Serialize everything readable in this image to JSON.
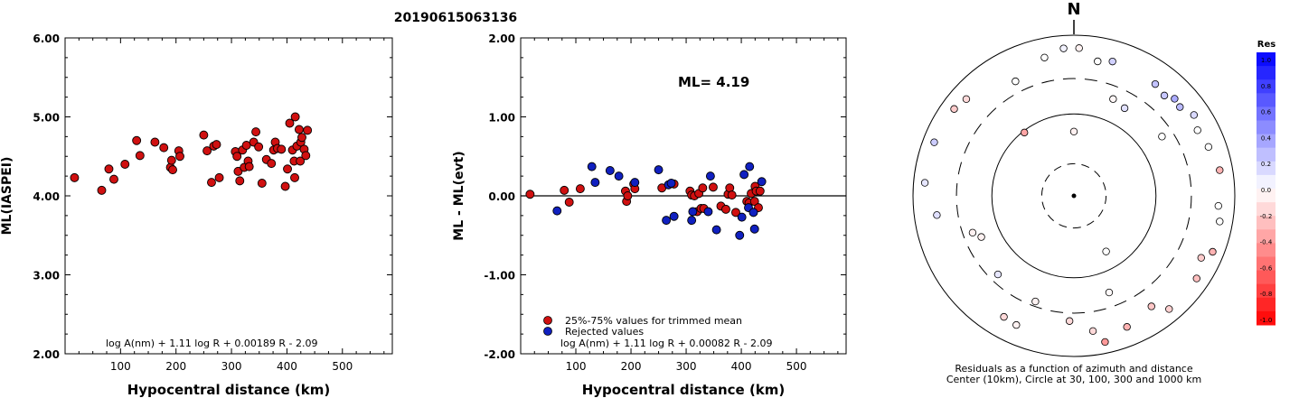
{
  "figure": {
    "event_id": "20190615063136"
  },
  "chart_data": [
    {
      "type": "scatter",
      "xlabel": "Hypocentral distance (km)",
      "ylabel": "ML(IASPEI)",
      "xlim": [
        0,
        590
      ],
      "ylim": [
        2.0,
        6.0
      ],
      "xticks": [
        100,
        200,
        300,
        400,
        500
      ],
      "xtick_labels": [
        "100",
        "200",
        "300",
        "400",
        "500"
      ],
      "yticks": [
        2,
        3,
        4,
        5,
        6
      ],
      "ytick_labels": [
        "2.00",
        "3.00",
        "4.00",
        "5.00",
        "6.00"
      ],
      "grid": false,
      "formula": "log A(nm) + 1.11 log R + 0.00189 R - 2.09",
      "points_color": "#d01010",
      "points": [
        [
          17,
          4.23
        ],
        [
          66,
          4.07
        ],
        [
          79,
          4.34
        ],
        [
          88,
          4.21
        ],
        [
          108,
          4.4
        ],
        [
          129,
          4.7
        ],
        [
          135,
          4.51
        ],
        [
          162,
          4.68
        ],
        [
          178,
          4.61
        ],
        [
          190,
          4.36
        ],
        [
          192,
          4.45
        ],
        [
          194,
          4.33
        ],
        [
          205,
          4.57
        ],
        [
          207,
          4.5
        ],
        [
          250,
          4.77
        ],
        [
          256,
          4.57
        ],
        [
          264,
          4.17
        ],
        [
          268,
          4.63
        ],
        [
          273,
          4.65
        ],
        [
          278,
          4.23
        ],
        [
          307,
          4.56
        ],
        [
          310,
          4.5
        ],
        [
          312,
          4.31
        ],
        [
          315,
          4.19
        ],
        [
          320,
          4.58
        ],
        [
          323,
          4.36
        ],
        [
          327,
          4.64
        ],
        [
          330,
          4.44
        ],
        [
          332,
          4.37
        ],
        [
          340,
          4.68
        ],
        [
          344,
          4.81
        ],
        [
          349,
          4.62
        ],
        [
          355,
          4.16
        ],
        [
          363,
          4.46
        ],
        [
          372,
          4.41
        ],
        [
          376,
          4.58
        ],
        [
          379,
          4.68
        ],
        [
          383,
          4.6
        ],
        [
          390,
          4.59
        ],
        [
          397,
          4.12
        ],
        [
          401,
          4.34
        ],
        [
          405,
          4.92
        ],
        [
          410,
          4.58
        ],
        [
          413,
          4.44
        ],
        [
          414,
          4.23
        ],
        [
          415,
          5.0
        ],
        [
          418,
          4.63
        ],
        [
          422,
          4.84
        ],
        [
          424,
          4.44
        ],
        [
          425,
          4.68
        ],
        [
          427,
          4.74
        ],
        [
          431,
          4.59
        ],
        [
          434,
          4.51
        ],
        [
          437,
          4.83
        ]
      ]
    },
    {
      "type": "scatter",
      "xlabel": "Hypocentral distance (km)",
      "ylabel": "ML - ML(evt)",
      "xlim": [
        0,
        590
      ],
      "ylim": [
        -2.0,
        2.0
      ],
      "xticks": [
        100,
        200,
        300,
        400,
        500
      ],
      "xtick_labels": [
        "100",
        "200",
        "300",
        "400",
        "500"
      ],
      "yticks": [
        -2,
        -1,
        0,
        1,
        2
      ],
      "ytick_labels": [
        "-2.00",
        "-1.00",
        "0.00",
        "1.00",
        "2.00"
      ],
      "zero_line": 0,
      "annotation": "ML= 4.19",
      "formula": "log A(nm) + 1.11 log R + 0.00082 R - 2.09",
      "legend": [
        {
          "label": "25%-75% values for trimmed mean",
          "color": "#d01010"
        },
        {
          "label": "Rejected values",
          "color": "#1020c0"
        }
      ],
      "series": [
        {
          "name": "25%-75% values for trimmed mean",
          "color": "#d01010",
          "points": [
            [
              17,
              0.02
            ],
            [
              79,
              0.07
            ],
            [
              88,
              -0.08
            ],
            [
              108,
              0.09
            ],
            [
              190,
              0.06
            ],
            [
              192,
              -0.07
            ],
            [
              194,
              0.0
            ],
            [
              205,
              0.15
            ],
            [
              207,
              0.09
            ],
            [
              256,
              0.1
            ],
            [
              278,
              0.15
            ],
            [
              307,
              0.06
            ],
            [
              310,
              0.01
            ],
            [
              315,
              0.0
            ],
            [
              320,
              -0.2
            ],
            [
              323,
              0.03
            ],
            [
              327,
              -0.16
            ],
            [
              330,
              0.1
            ],
            [
              332,
              -0.16
            ],
            [
              349,
              0.11
            ],
            [
              363,
              -0.13
            ],
            [
              372,
              -0.17
            ],
            [
              376,
              0.02
            ],
            [
              379,
              0.1
            ],
            [
              383,
              0.01
            ],
            [
              390,
              -0.21
            ],
            [
              410,
              -0.07
            ],
            [
              414,
              -0.09
            ],
            [
              418,
              0.03
            ],
            [
              424,
              -0.07
            ],
            [
              425,
              0.12
            ],
            [
              427,
              0.06
            ],
            [
              431,
              -0.15
            ],
            [
              434,
              0.06
            ]
          ]
        },
        {
          "name": "Rejected values",
          "color": "#1020c0",
          "points": [
            [
              66,
              -0.19
            ],
            [
              129,
              0.37
            ],
            [
              135,
              0.17
            ],
            [
              162,
              0.32
            ],
            [
              178,
              0.25
            ],
            [
              207,
              0.17
            ],
            [
              250,
              0.33
            ],
            [
              264,
              -0.31
            ],
            [
              268,
              0.14
            ],
            [
              273,
              0.16
            ],
            [
              278,
              -0.26
            ],
            [
              310,
              -0.31
            ],
            [
              312,
              -0.2
            ],
            [
              340,
              -0.2
            ],
            [
              344,
              0.25
            ],
            [
              355,
              -0.43
            ],
            [
              397,
              -0.5
            ],
            [
              401,
              -0.27
            ],
            [
              405,
              0.27
            ],
            [
              413,
              -0.15
            ],
            [
              415,
              0.37
            ],
            [
              422,
              -0.21
            ],
            [
              424,
              -0.42
            ],
            [
              437,
              0.18
            ]
          ]
        }
      ]
    }
  ],
  "polar": {
    "north_label": "N",
    "caption_line1": "Residuals as a function of azimuth and distance",
    "caption_line2": "Center (10km), Circle at 30, 100, 300 and 1000 km",
    "circles": [
      {
        "distance_km": 30,
        "style": "dashed"
      },
      {
        "distance_km": 100,
        "style": "solid"
      },
      {
        "distance_km": 300,
        "style": "dashed"
      },
      {
        "distance_km": 1000,
        "style": "solid"
      }
    ],
    "stations": [
      [
        0,
        0.4,
        -0.06
      ],
      [
        22,
        0.65,
        -0.03
      ],
      [
        30,
        0.63,
        0.12
      ],
      [
        36,
        0.86,
        0.24
      ],
      [
        42,
        0.84,
        0.22
      ],
      [
        46,
        0.87,
        0.33
      ],
      [
        50,
        0.86,
        0.27
      ],
      [
        56,
        0.9,
        0.15
      ],
      [
        62,
        0.87,
        0.0
      ],
      [
        70,
        0.89,
        0.0
      ],
      [
        80,
        0.92,
        -0.3
      ],
      [
        94,
        0.9,
        0.0
      ],
      [
        100,
        0.92,
        0.0
      ],
      [
        112,
        0.93,
        -0.3
      ],
      [
        116,
        0.88,
        -0.2
      ],
      [
        124,
        0.92,
        -0.25
      ],
      [
        140,
        0.92,
        -0.18
      ],
      [
        145,
        0.84,
        -0.22
      ],
      [
        158,
        0.88,
        -0.3
      ],
      [
        168,
        0.93,
        -0.4
      ],
      [
        182,
        0.78,
        -0.15
      ],
      [
        200,
        0.7,
        -0.05
      ],
      [
        204,
        0.88,
        -0.05
      ],
      [
        210,
        0.87,
        -0.15
      ],
      [
        224,
        0.68,
        0.1
      ],
      [
        246,
        0.63,
        -0.05
      ],
      [
        250,
        0.67,
        -0.05
      ],
      [
        262,
        0.86,
        0.12
      ],
      [
        275,
        0.93,
        0.1
      ],
      [
        291,
        0.93,
        0.2
      ],
      [
        306,
        0.92,
        -0.2
      ],
      [
        312,
        0.9,
        -0.15
      ],
      [
        322,
        0.5,
        -0.35
      ],
      [
        333,
        0.8,
        0.0
      ],
      [
        348,
        0.88,
        0.0
      ],
      [
        356,
        0.92,
        0.05
      ],
      [
        2,
        0.92,
        -0.05
      ],
      [
        10,
        0.85,
        0.0
      ],
      [
        16,
        0.87,
        0.18
      ],
      [
        172,
        0.85,
        -0.15
      ],
      [
        160,
        0.64,
        -0.02
      ],
      [
        150,
        0.4,
        0.0
      ],
      [
        56,
        0.66,
        0.0
      ]
    ],
    "colorbar": {
      "title": "Res",
      "ticks": [
        "1.0",
        "0.8",
        "0.6",
        "0.4",
        "0.2",
        "0.0",
        "-0.2",
        "-0.4",
        "-0.6",
        "-0.8",
        "-1.0"
      ]
    }
  }
}
